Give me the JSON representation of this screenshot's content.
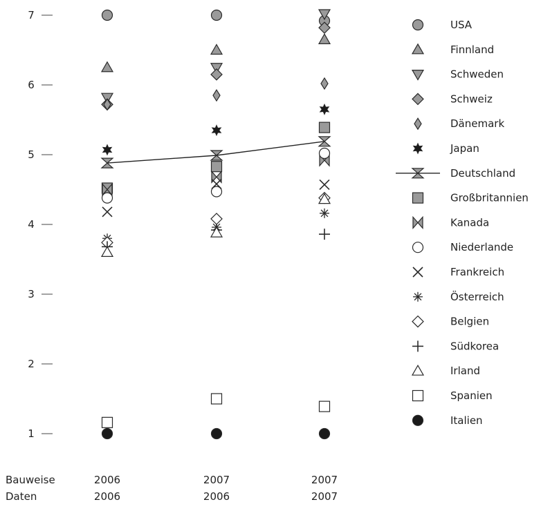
{
  "chart_data": {
    "type": "scatter",
    "title": "",
    "xlabel": "",
    "ylabel": "",
    "ylim": [
      1,
      7
    ],
    "yticks": [
      "1",
      "2",
      "3",
      "4",
      "5",
      "6",
      "7"
    ],
    "grid": false,
    "legend_position": "right",
    "category_row_titles": [
      "Bauweise",
      "Daten"
    ],
    "categories": [
      {
        "bauweise": "2006",
        "daten": "2006"
      },
      {
        "bauweise": "2007",
        "daten": "2006"
      },
      {
        "bauweise": "2007",
        "daten": "2007"
      }
    ],
    "series": [
      {
        "name": "USA",
        "marker": "circle",
        "fill": "#9a9a9a",
        "values": [
          7.0,
          7.0,
          6.92
        ]
      },
      {
        "name": "Finnland",
        "marker": "triangle-up",
        "fill": "#9a9a9a",
        "values": [
          6.25,
          6.5,
          6.65
        ]
      },
      {
        "name": "Schweden",
        "marker": "triangle-down",
        "fill": "#9a9a9a",
        "values": [
          5.82,
          6.25,
          7.02
        ]
      },
      {
        "name": "Schweiz",
        "marker": "diamond",
        "fill": "#9a9a9a",
        "values": [
          5.72,
          6.15,
          6.82
        ]
      },
      {
        "name": "Dänemark",
        "marker": "diamond-small",
        "fill": "#9a9a9a",
        "values": [
          5.72,
          5.85,
          6.02
        ]
      },
      {
        "name": "Japan",
        "marker": "star6",
        "fill": "#1a1a1a",
        "values": [
          5.07,
          5.35,
          5.65
        ]
      },
      {
        "name": "Deutschland",
        "marker": "hourglass-line",
        "fill": "#9a9a9a",
        "values": [
          4.88,
          4.99,
          5.19
        ]
      },
      {
        "name": "Großbritannien",
        "marker": "square",
        "fill": "#9a9a9a",
        "values": [
          4.52,
          4.83,
          5.39
        ]
      },
      {
        "name": "Kanada",
        "marker": "bowtie",
        "fill": "#9a9a9a",
        "values": [
          4.5,
          4.68,
          4.92
        ]
      },
      {
        "name": "Niederlande",
        "marker": "circle",
        "fill": "#ffffff",
        "values": [
          4.38,
          4.47,
          5.02
        ]
      },
      {
        "name": "Frankreich",
        "marker": "x",
        "fill": "#1a1a1a",
        "values": [
          4.18,
          4.58,
          4.57
        ]
      },
      {
        "name": "Österreich",
        "marker": "asterisk",
        "fill": "#1a1a1a",
        "values": [
          3.8,
          3.96,
          4.16
        ]
      },
      {
        "name": "Belgien",
        "marker": "diamond",
        "fill": "#ffffff",
        "values": [
          3.74,
          4.08,
          4.38
        ]
      },
      {
        "name": "Südkorea",
        "marker": "plus",
        "fill": "#1a1a1a",
        "values": [
          3.68,
          3.92,
          3.86
        ]
      },
      {
        "name": "Irland",
        "marker": "triangle-up",
        "fill": "#ffffff",
        "values": [
          3.6,
          3.88,
          4.36
        ]
      },
      {
        "name": "Spanien",
        "marker": "square",
        "fill": "#ffffff",
        "values": [
          1.16,
          1.5,
          1.39
        ]
      },
      {
        "name": "Italien",
        "marker": "circle",
        "fill": "#1a1a1a",
        "values": [
          1.0,
          1.0,
          1.0
        ]
      }
    ]
  }
}
